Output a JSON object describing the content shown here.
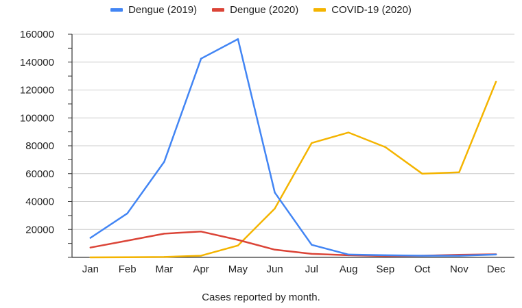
{
  "chart_data": {
    "type": "line",
    "categories": [
      "Jan",
      "Feb",
      "Mar",
      "Apr",
      "May",
      "Jun",
      "Jul",
      "Aug",
      "Sep",
      "Oct",
      "Nov",
      "Dec"
    ],
    "series": [
      {
        "name": "Dengue (2019)",
        "color": "#4285F4",
        "values": [
          14000,
          31500,
          68500,
          142500,
          156500,
          46500,
          9000,
          2000,
          1500,
          1200,
          1200,
          2000
        ]
      },
      {
        "name": "Dengue (2020)",
        "color": "#DB4437",
        "values": [
          7000,
          12000,
          17000,
          18500,
          12500,
          5500,
          2500,
          1500,
          1000,
          1200,
          1800,
          2200
        ]
      },
      {
        "name": "COVID-19 (2020)",
        "color": "#F4B400",
        "values": [
          0,
          100,
          300,
          1200,
          8500,
          35000,
          82000,
          89500,
          79000,
          60000,
          61000,
          126000
        ]
      }
    ],
    "yticks": [
      "20000",
      "40000",
      "60000",
      "80000",
      "100000",
      "120000",
      "140000",
      "160000"
    ],
    "ylim": [
      0,
      160000
    ],
    "xlabel": "Cases reported by month.",
    "ylabel": "",
    "title": "",
    "grid": true,
    "legend_position": "top"
  }
}
